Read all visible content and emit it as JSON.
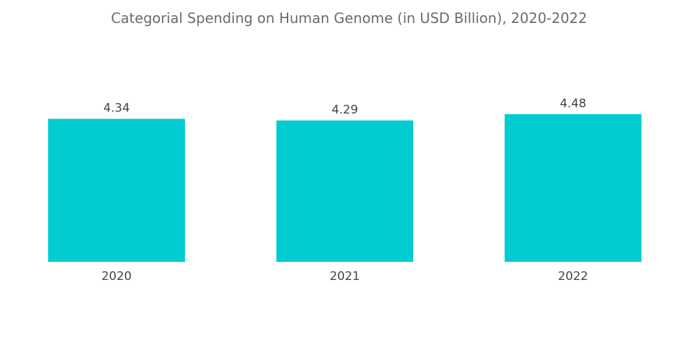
{
  "chart_data": {
    "type": "bar",
    "title": "Categorial Spending on Human Genome (in USD Billion), 2020-2022",
    "categories": [
      "2020",
      "2021",
      "2022"
    ],
    "values": [
      4.34,
      4.29,
      4.48
    ],
    "value_labels": [
      "4.34",
      "4.29",
      "4.48"
    ],
    "xlabel": "",
    "ylabel": "",
    "ylim": [
      0,
      4.48
    ],
    "grid": false,
    "legend": "none",
    "bar_color": "#00ccd1"
  }
}
